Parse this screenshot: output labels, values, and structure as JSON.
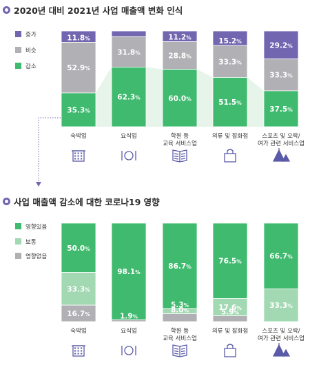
{
  "chart_data": [
    {
      "type": "bar",
      "stacked": true,
      "title": "2020년 대비 2021년 사업 매출액 변화 인식",
      "categories": [
        "숙박업",
        "요식업",
        "학원 등\n교육 서비스업",
        "의류 및 잡화점",
        "스포츠 및 오락/\n여가 관련 서비스업"
      ],
      "series": [
        {
          "name": "증가",
          "color": "#7266b0",
          "values": [
            11.8,
            5.9,
            11.2,
            15.2,
            29.2
          ]
        },
        {
          "name": "비슷",
          "color": "#b1b1b5",
          "values": [
            52.9,
            31.8,
            28.8,
            33.3,
            33.3
          ]
        },
        {
          "name": "감소",
          "color": "#3fba6e",
          "values": [
            35.3,
            62.3,
            60.0,
            51.5,
            37.5
          ]
        }
      ],
      "unit": "%",
      "ylim": [
        0,
        100
      ],
      "legend_position": "left"
    },
    {
      "type": "bar",
      "stacked": true,
      "title": "사업 매출액 감소에 대한 코로나19 영향",
      "categories": [
        "숙박업",
        "요식업",
        "학원 등\n교육 서비스업",
        "의류 및 잡화점",
        "스포츠 및 오락/\n여가 관련 서비스업"
      ],
      "series": [
        {
          "name": "영향있음",
          "color": "#3fba6e",
          "values": [
            50.0,
            98.1,
            86.7,
            76.5,
            66.7
          ]
        },
        {
          "name": "보통",
          "color": "#a2d8b2",
          "values": [
            33.3,
            0,
            5.3,
            17.6,
            33.3
          ]
        },
        {
          "name": "영향없음",
          "color": "#b1b1b5",
          "values": [
            16.7,
            1.9,
            8.0,
            5.9,
            0
          ]
        }
      ],
      "unit": "%",
      "ylim": [
        0,
        100
      ],
      "legend_position": "left"
    }
  ],
  "icons": [
    "hotel-icon",
    "restaurant-icon",
    "book-icon",
    "shopping-bag-icon",
    "tent-icon"
  ],
  "colors": {
    "accent": "#7266b0",
    "icon": "#5a5aa8",
    "connector": "#e7f4ea"
  }
}
